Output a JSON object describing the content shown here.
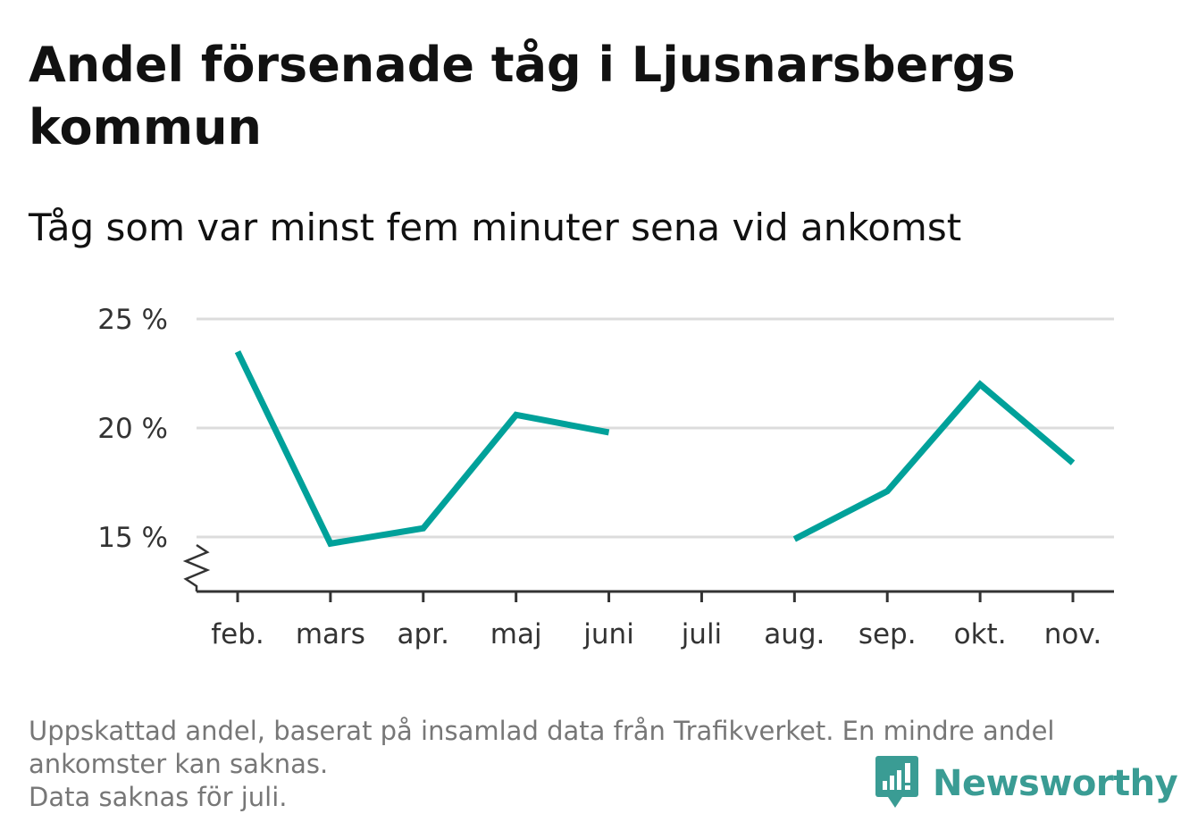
{
  "title": "Andel försenade tåg i Ljusnarsbergs kommun",
  "subtitle": "Tåg som var minst fem minuter sena vid ankomst",
  "chart_data": {
    "type": "line",
    "categories": [
      "feb.",
      "mars",
      "apr.",
      "maj",
      "juni",
      "juli",
      "aug.",
      "sep.",
      "okt.",
      "nov."
    ],
    "series": [
      {
        "values": [
          23.5,
          14.7,
          15.4,
          20.6,
          19.8,
          null,
          14.9,
          17.1,
          22.0,
          18.4
        ]
      }
    ],
    "yticks": [
      15,
      20,
      25
    ],
    "ytick_labels": [
      "15 %",
      "20 %",
      "25 %"
    ],
    "ylim": [
      12.5,
      25
    ],
    "grid": true,
    "line_color": "#00a19a"
  },
  "footnote": {
    "line1": "Uppskattad andel, baserat på insamlad data från Trafikverket. En mindre andel",
    "line2": "ankomster kan saknas.",
    "line3": "Data saknas för juli."
  },
  "brand": {
    "name": "Newsworthy",
    "icon": "newsworthy-logo-icon",
    "color": "#3a9c94"
  }
}
